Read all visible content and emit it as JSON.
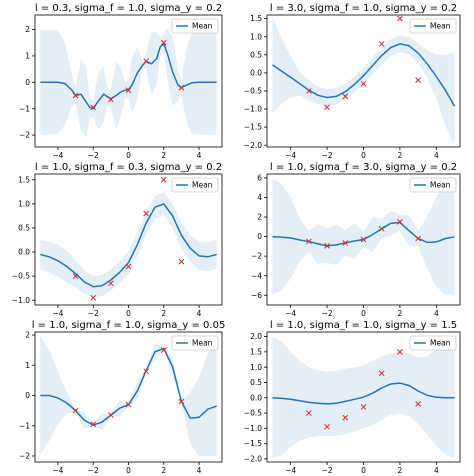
{
  "colors": {
    "mean": "#1f77b4",
    "band": "#1f77b4",
    "points": "#d62728"
  },
  "legend_label": "Mean",
  "chart_data": [
    {
      "type": "line",
      "title": "l = 0.3, sigma_f = 1.0, sigma_y = 0.2",
      "xlim": [
        -5.3,
        5.3
      ],
      "ylim": [
        -2.45,
        2.55
      ],
      "xticks": [
        -4,
        -2,
        0,
        2,
        4
      ],
      "yticks": [
        -2,
        -1,
        0,
        1,
        2
      ],
      "xtick_labels": [
        "−4",
        "−2",
        "0",
        "2",
        "4"
      ],
      "ytick_labels": [
        "−2",
        "−1",
        "0",
        "1",
        "2"
      ],
      "legend": "top-right",
      "grid": false,
      "x": [
        -5,
        -4.5,
        -4,
        -3.6,
        -3.2,
        -3,
        -2.7,
        -2.4,
        -2.2,
        -2,
        -1.7,
        -1.4,
        -1.2,
        -1,
        -0.7,
        -0.4,
        -0.2,
        0,
        0.2,
        0.5,
        0.8,
        1,
        1.3,
        1.6,
        1.8,
        2,
        2.2,
        2.5,
        2.8,
        3,
        3.3,
        3.6,
        4,
        4.5,
        5
      ],
      "mean": [
        0,
        0,
        0,
        -0.05,
        -0.3,
        -0.5,
        -0.45,
        -0.75,
        -0.95,
        -1.0,
        -0.7,
        -0.45,
        -0.55,
        -0.62,
        -0.5,
        -0.35,
        -0.3,
        -0.28,
        -0.1,
        0.35,
        0.65,
        0.8,
        0.7,
        0.9,
        1.35,
        1.45,
        1.1,
        0.4,
        -0.1,
        -0.2,
        -0.1,
        -0.02,
        0,
        0,
        0
      ],
      "upper": [
        1.98,
        1.98,
        1.96,
        1.5,
        0.3,
        -0.2,
        0.9,
        0.6,
        -0.55,
        -0.7,
        0.4,
        0.6,
        -0.25,
        -0.3,
        0.8,
        0.5,
        0,
        0.05,
        0.95,
        1.35,
        0.8,
        1.1,
        1.9,
        1.9,
        1.7,
        1.8,
        2.05,
        1.7,
        0.5,
        0.1,
        1.3,
        1.9,
        1.98,
        1.98,
        1.98
      ],
      "lower": [
        -1.98,
        -1.98,
        -1.96,
        -1.6,
        -0.9,
        -0.8,
        -1.8,
        -2.1,
        -1.35,
        -1.3,
        -1.8,
        -1.5,
        -0.85,
        -0.95,
        -1.8,
        -1.2,
        -0.6,
        -0.6,
        -1.15,
        -0.65,
        0.5,
        0.5,
        -0.5,
        -0.1,
        1.0,
        1.1,
        0.15,
        -0.9,
        -0.7,
        -0.5,
        -1.5,
        -1.95,
        -1.98,
        -1.98,
        -1.98
      ],
      "points_x": [
        -3,
        -2,
        -1,
        0,
        1,
        2,
        3
      ],
      "points_y": [
        -0.5,
        -0.95,
        -0.65,
        -0.3,
        0.8,
        1.5,
        -0.2
      ]
    },
    {
      "type": "line",
      "title": "l = 3.0, sigma_f = 1.0, sigma_y = 0.2",
      "xlim": [
        -5.3,
        5.3
      ],
      "ylim": [
        -2.05,
        1.6
      ],
      "xticks": [
        -4,
        -2,
        0,
        2,
        4
      ],
      "yticks": [
        -2.0,
        -1.5,
        -1.0,
        -0.5,
        0.0,
        0.5,
        1.0,
        1.5
      ],
      "xtick_labels": [
        "−4",
        "−2",
        "0",
        "2",
        "4"
      ],
      "ytick_labels": [
        "−2.0",
        "−1.5",
        "−1.0",
        "−0.5",
        "0.0",
        "0.5",
        "1.0",
        "1.5"
      ],
      "legend": "top-right",
      "grid": false,
      "x": [
        -5,
        -4.5,
        -4,
        -3.5,
        -3,
        -2.5,
        -2,
        -1.5,
        -1,
        -0.5,
        0,
        0.5,
        1,
        1.5,
        2,
        2.5,
        3,
        3.5,
        4,
        4.5,
        5
      ],
      "mean": [
        0.22,
        0.05,
        -0.12,
        -0.3,
        -0.48,
        -0.62,
        -0.68,
        -0.65,
        -0.52,
        -0.32,
        -0.08,
        0.2,
        0.48,
        0.7,
        0.8,
        0.75,
        0.55,
        0.25,
        -0.1,
        -0.48,
        -0.92
      ],
      "upper": [
        1.55,
        0.95,
        0.45,
        0.02,
        -0.2,
        -0.38,
        -0.45,
        -0.42,
        -0.3,
        -0.1,
        0.15,
        0.43,
        0.72,
        0.93,
        1.03,
        0.99,
        0.82,
        0.62,
        0.5,
        0.5,
        0.55
      ],
      "lower": [
        -1.1,
        -0.85,
        -0.69,
        -0.62,
        -0.76,
        -0.86,
        -0.91,
        -0.88,
        -0.74,
        -0.54,
        -0.31,
        -0.03,
        0.24,
        0.47,
        0.57,
        0.51,
        0.28,
        -0.12,
        -0.7,
        -1.46,
        -2.0
      ],
      "points_x": [
        -3,
        -2,
        -1,
        0,
        1,
        2,
        3
      ],
      "points_y": [
        -0.5,
        -0.95,
        -0.65,
        -0.3,
        0.8,
        1.5,
        -0.2
      ]
    },
    {
      "type": "line",
      "title": "l = 1.0, sigma_f = 0.3, sigma_y = 0.2",
      "xlim": [
        -5.3,
        5.3
      ],
      "ylim": [
        -1.1,
        1.62
      ],
      "xticks": [
        -4,
        -2,
        0,
        2,
        4
      ],
      "yticks": [
        -1.0,
        -0.5,
        0.0,
        0.5,
        1.0,
        1.5
      ],
      "xtick_labels": [
        "−4",
        "−2",
        "0",
        "2",
        "4"
      ],
      "ytick_labels": [
        "−1.0",
        "−0.5",
        "0.0",
        "0.5",
        "1.0",
        "1.5"
      ],
      "legend": "top-right",
      "grid": false,
      "x": [
        -5,
        -4.5,
        -4,
        -3.5,
        -3,
        -2.5,
        -2,
        -1.5,
        -1,
        -0.5,
        0,
        0.5,
        1,
        1.5,
        2,
        2.5,
        3,
        3.5,
        4,
        4.5,
        5
      ],
      "mean": [
        -0.05,
        -0.1,
        -0.18,
        -0.3,
        -0.45,
        -0.62,
        -0.72,
        -0.7,
        -0.58,
        -0.42,
        -0.22,
        0.15,
        0.6,
        0.93,
        1.0,
        0.75,
        0.35,
        0.08,
        -0.08,
        -0.1,
        -0.05
      ],
      "upper": [
        0.25,
        0.22,
        0.15,
        0.03,
        -0.17,
        -0.38,
        -0.5,
        -0.48,
        -0.36,
        -0.2,
        0.02,
        0.4,
        0.84,
        1.17,
        1.24,
        1.0,
        0.62,
        0.36,
        0.22,
        0.2,
        0.25
      ],
      "lower": [
        -0.35,
        -0.42,
        -0.51,
        -0.63,
        -0.73,
        -0.86,
        -0.94,
        -0.92,
        -0.8,
        -0.64,
        -0.46,
        -0.1,
        0.36,
        0.69,
        0.76,
        0.5,
        0.08,
        -0.2,
        -0.38,
        -0.4,
        -0.35
      ],
      "points_x": [
        -3,
        -2,
        -1,
        0,
        1,
        2,
        3
      ],
      "points_y": [
        -0.5,
        -0.95,
        -0.65,
        -0.3,
        0.8,
        1.5,
        -0.2
      ]
    },
    {
      "type": "line",
      "title": "l = 1.0, sigma_f = 3.0, sigma_y = 0.2",
      "xlim": [
        -5.3,
        5.3
      ],
      "ylim": [
        -7.0,
        6.4
      ],
      "xticks": [
        -4,
        -2,
        0,
        2,
        4
      ],
      "yticks": [
        -6,
        -4,
        -2,
        0,
        2,
        4,
        6
      ],
      "xtick_labels": [
        "−4",
        "−2",
        "0",
        "2",
        "4"
      ],
      "ytick_labels": [
        "−6",
        "−4",
        "−2",
        "0",
        "2",
        "4",
        "6"
      ],
      "legend": "top-right",
      "grid": false,
      "x": [
        -5,
        -4.5,
        -4,
        -3.5,
        -3,
        -2.5,
        -2,
        -1.5,
        -1,
        -0.5,
        0,
        0.5,
        1,
        1.5,
        2,
        2.5,
        3,
        3.5,
        4,
        4.5,
        5
      ],
      "mean": [
        0.0,
        -0.05,
        -0.15,
        -0.35,
        -0.5,
        -0.75,
        -0.95,
        -0.85,
        -0.65,
        -0.45,
        -0.3,
        0.2,
        0.8,
        1.35,
        1.45,
        0.6,
        -0.2,
        -0.6,
        -0.55,
        -0.2,
        -0.02
      ],
      "upper": [
        5.9,
        5.4,
        4.0,
        1.8,
        0.6,
        1.3,
        0.8,
        1.2,
        0.6,
        1.4,
        0.5,
        2.0,
        1.8,
        2.6,
        2.3,
        2.2,
        0.6,
        2.0,
        4.0,
        5.5,
        5.9
      ],
      "lower": [
        -5.9,
        -5.5,
        -4.3,
        -2.5,
        -1.6,
        -2.8,
        -2.7,
        -2.9,
        -1.9,
        -2.3,
        -1.1,
        -1.6,
        -0.2,
        0.1,
        0.6,
        -1.0,
        -1.0,
        -3.2,
        -5.1,
        -5.9,
        -5.95
      ],
      "points_x": [
        -3,
        -2,
        -1,
        0,
        1,
        2,
        3
      ],
      "points_y": [
        -0.5,
        -0.95,
        -0.65,
        -0.3,
        0.8,
        1.5,
        -0.2
      ]
    },
    {
      "type": "line",
      "title": "l = 1.0, sigma_f = 1.0, sigma_y = 0.05",
      "xlim": [
        -5.3,
        5.3
      ],
      "ylim": [
        -2.2,
        2.1
      ],
      "xticks": [
        -4,
        -2,
        0,
        2,
        4
      ],
      "yticks": [
        -2,
        -1,
        0,
        1,
        2
      ],
      "xtick_labels": [
        "−4",
        "−2",
        "0",
        "2",
        "4"
      ],
      "ytick_labels": [
        "−2",
        "−1",
        "0",
        "1",
        "2"
      ],
      "legend": "top-right",
      "grid": false,
      "x": [
        -5,
        -4.5,
        -4,
        -3.5,
        -3,
        -2.5,
        -2,
        -1.5,
        -1,
        -0.5,
        0,
        0.5,
        1,
        1.5,
        2,
        2.5,
        3,
        3.5,
        4,
        4.5,
        5
      ],
      "mean": [
        0.0,
        0.0,
        -0.08,
        -0.25,
        -0.5,
        -0.82,
        -0.98,
        -0.88,
        -0.65,
        -0.42,
        -0.3,
        0.15,
        0.82,
        1.45,
        1.55,
        0.95,
        -0.2,
        -0.75,
        -0.72,
        -0.45,
        -0.35
      ],
      "upper": [
        1.95,
        1.5,
        0.8,
        0.1,
        -0.45,
        -0.55,
        -0.93,
        -0.6,
        -0.6,
        -0.15,
        -0.25,
        0.45,
        0.87,
        1.72,
        1.6,
        1.25,
        -0.15,
        0.1,
        0.6,
        1.4,
        1.95
      ],
      "lower": [
        -1.95,
        -1.5,
        -0.95,
        -0.6,
        -0.55,
        -1.1,
        -1.03,
        -1.15,
        -0.7,
        -0.7,
        -0.35,
        -0.15,
        0.77,
        1.18,
        1.5,
        0.65,
        -0.25,
        -1.6,
        -2.0,
        -2.0,
        -2.0
      ],
      "points_x": [
        -3,
        -2,
        -1,
        0,
        1,
        2,
        3
      ],
      "points_y": [
        -0.5,
        -0.95,
        -0.65,
        -0.3,
        0.8,
        1.5,
        -0.2
      ]
    },
    {
      "type": "line",
      "title": "l = 1.0, sigma_f = 1.0, sigma_y = 1.5",
      "xlim": [
        -5.3,
        5.3
      ],
      "ylim": [
        -2.1,
        2.15
      ],
      "xticks": [
        -4,
        -2,
        0,
        2,
        4
      ],
      "yticks": [
        -2.0,
        -1.5,
        -1.0,
        -0.5,
        0.0,
        0.5,
        1.0,
        1.5,
        2.0
      ],
      "xtick_labels": [
        "−4",
        "−2",
        "0",
        "2",
        "4"
      ],
      "ytick_labels": [
        "−2.0",
        "−1.5",
        "−1.0",
        "−0.5",
        "0.0",
        "0.5",
        "1.0",
        "1.5",
        "2.0"
      ],
      "legend": "top-right",
      "grid": false,
      "x": [
        -5,
        -4.5,
        -4,
        -3.5,
        -3,
        -2.5,
        -2,
        -1.5,
        -1,
        -0.5,
        0,
        0.5,
        1,
        1.5,
        2,
        2.5,
        3,
        3.5,
        4,
        4.5,
        5
      ],
      "mean": [
        0.0,
        -0.02,
        -0.05,
        -0.1,
        -0.15,
        -0.18,
        -0.2,
        -0.18,
        -0.12,
        -0.05,
        0.02,
        0.15,
        0.32,
        0.45,
        0.48,
        0.4,
        0.22,
        0.08,
        0.02,
        0.0,
        0.0
      ],
      "upper": [
        1.98,
        1.85,
        1.5,
        1.2,
        1.0,
        0.9,
        0.85,
        0.88,
        0.95,
        1.0,
        1.05,
        1.2,
        1.35,
        1.45,
        1.5,
        1.45,
        1.3,
        1.35,
        1.6,
        1.85,
        1.98
      ],
      "lower": [
        -1.98,
        -1.88,
        -1.6,
        -1.4,
        -1.3,
        -1.25,
        -1.25,
        -1.24,
        -1.2,
        -1.1,
        -1.0,
        -0.9,
        -0.72,
        -0.55,
        -0.5,
        -0.6,
        -0.85,
        -1.2,
        -1.55,
        -1.85,
        -1.98
      ],
      "points_x": [
        -3,
        -2,
        -1,
        0,
        1,
        2,
        3
      ],
      "points_y": [
        -0.5,
        -0.95,
        -0.65,
        -0.3,
        0.8,
        1.5,
        -0.2
      ]
    }
  ]
}
